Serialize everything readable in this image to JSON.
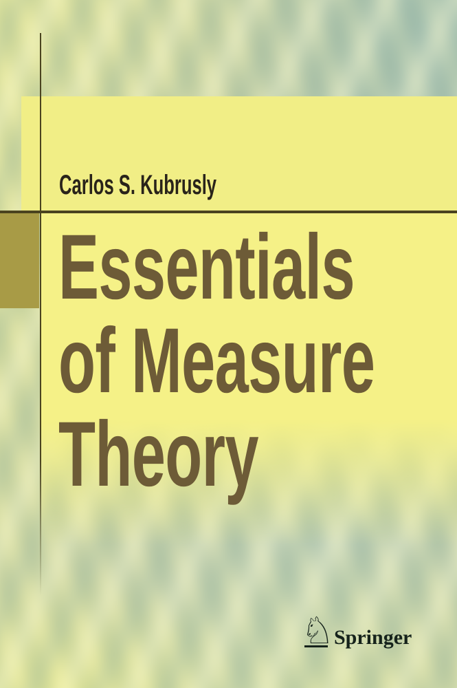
{
  "book_cover": {
    "author": "Carlos S. Kubrusly",
    "title_lines": [
      "Essentials",
      "of Measure",
      "Theory"
    ],
    "publisher": {
      "name": "Springer",
      "horse_glyph": "♘"
    }
  },
  "colors": {
    "author_text": "#29231a",
    "title_text": "#6d5b37",
    "author_panel_bg": "#f1ee86",
    "title_panel_bg": "#f5f187",
    "accent_square": "#a89b46",
    "rule": "#4a431f",
    "publisher_text": "#15221b",
    "bg_yellow": "#e7e78e",
    "bg_green": "#c5cfa3",
    "bg_teal": "#b9cbb4"
  }
}
